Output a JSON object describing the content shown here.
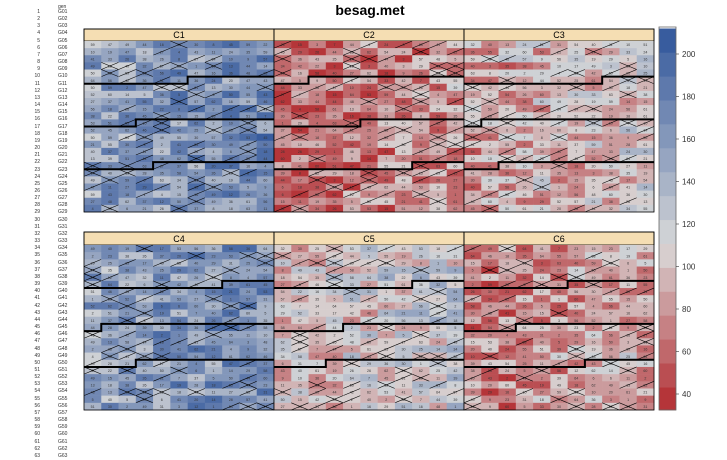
{
  "title": "besag.met",
  "row_header": "gen",
  "row_count": 63,
  "chart_data": {
    "type": "heatmap",
    "title": "besag.met",
    "panels": [
      {
        "label": "C1",
        "approx_mean": 160
      },
      {
        "label": "C2",
        "approx_mean": 70
      },
      {
        "label": "C3",
        "approx_mean": 95
      },
      {
        "label": "C4",
        "approx_mean": 160
      },
      {
        "label": "C5",
        "approx_mean": 110
      },
      {
        "label": "C6",
        "approx_mean": 80
      }
    ],
    "colorbar": {
      "ticks": [
        40,
        60,
        80,
        100,
        120,
        140,
        160,
        180,
        200
      ],
      "range": [
        32,
        212
      ]
    },
    "colors": {
      "low": "#b2282d",
      "mid": "#d9d9d9",
      "high": "#2f559b",
      "strip": "#f5deb3"
    }
  }
}
